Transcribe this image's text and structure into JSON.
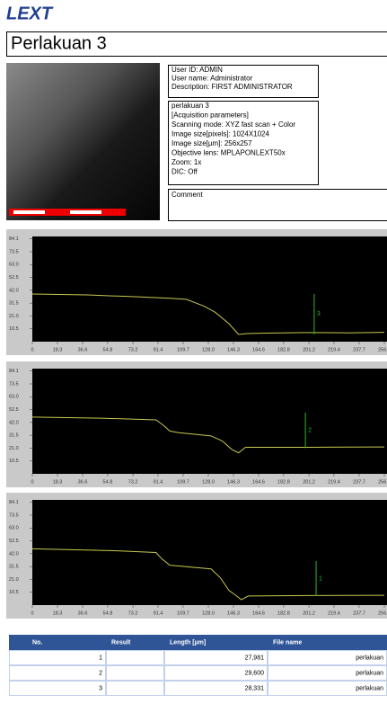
{
  "header": {
    "logo": "LEXT",
    "title": "Perlakuan 3"
  },
  "info": {
    "user": [
      "User ID: ADMIN",
      "User name: Administrator",
      "Description: FIRST ADMINISTRATOR"
    ],
    "params": [
      "perlakuan 3",
      "[Acquisition parameters]",
      "Scanning mode: XYZ fast scan + Color",
      "Image size[pixels]: 1024X1024",
      "Image size[µm]: 256x257",
      "Objective lens: MPLAPONLEXT50x",
      "Zoom: 1x",
      "DIC: Off"
    ],
    "comment": "Comment"
  },
  "profiles": [
    {
      "type": "line",
      "xlim": [
        0,
        256
      ],
      "ylim": [
        0,
        86
      ],
      "yticks": [
        84.1,
        73.5,
        {
          "value": 63.0,
          "label": "63.0"
        },
        52.5,
        {
          "value": 42.0,
          "label": "42.0"
        },
        31.5,
        {
          "value": 21.0,
          "label": "21.0"
        },
        10.5
      ],
      "xticks": [
        0,
        18.3,
        36.6,
        54.8,
        73.2,
        91.4,
        109.7,
        {
          "value": 128.0,
          "label": "128.0"
        },
        146.3,
        164.6,
        182.8,
        201.2,
        219.4,
        237.7,
        {
          "value": 256.0,
          "label": "256.0"
        }
      ],
      "x": [
        0,
        40,
        73,
        100,
        112,
        125,
        133,
        143,
        150,
        156,
        170,
        200,
        230,
        256
      ],
      "y": [
        39,
        38.2,
        36.8,
        35.5,
        34.6,
        29,
        24,
        14.7,
        5.9,
        6.6,
        7.0,
        7.4,
        7.2,
        7.6
      ],
      "color": "#c8c850",
      "marker": {
        "x": 205,
        "ymin": 6,
        "ymax": 39,
        "label": "3",
        "color": "#2db82d"
      }
    },
    {
      "type": "line",
      "xlim": [
        0,
        256
      ],
      "ylim": [
        0,
        86
      ],
      "yticks": [
        84.1,
        73.5,
        {
          "value": 63.0,
          "label": "63.0"
        },
        52.5,
        {
          "value": 42.0,
          "label": "42.0"
        },
        31.5,
        {
          "value": 21.0,
          "label": "21.0"
        },
        10.5
      ],
      "xticks": [
        0,
        18.3,
        36.6,
        54.8,
        73.2,
        91.4,
        109.7,
        {
          "value": 128.0,
          "label": "128.0"
        },
        146.3,
        164.6,
        182.8,
        201.2,
        219.4,
        237.7,
        {
          "value": 256.0,
          "label": "256.0"
        }
      ],
      "x": [
        0,
        50,
        90,
        95,
        100,
        106,
        130,
        138,
        145,
        150,
        155,
        200,
        256
      ],
      "y": [
        46.4,
        45.5,
        44.1,
        40,
        35,
        33.7,
        31,
        27,
        20,
        17.2,
        21.7,
        21.7,
        22
      ],
      "color": "#c8c850",
      "marker": {
        "x": 198.6,
        "ymin": 21,
        "ymax": 50,
        "label": "2",
        "color": "#2db82d"
      }
    },
    {
      "type": "line",
      "xlim": [
        0,
        256
      ],
      "ylim": [
        0,
        86
      ],
      "yticks": [
        84.1,
        73.5,
        {
          "value": 63.0,
          "label": "63.0"
        },
        52.5,
        {
          "value": 42.0,
          "label": "42.0"
        },
        31.5,
        {
          "value": 21.0,
          "label": "21.0"
        },
        10.5
      ],
      "xticks": [
        0,
        18.3,
        36.6,
        54.8,
        73.2,
        91.4,
        109.7,
        {
          "value": 128.0,
          "label": "128.0"
        },
        146.3,
        164.6,
        182.8,
        201.2,
        219.4,
        237.7,
        {
          "value": 256.0,
          "label": "256.0"
        }
      ],
      "x": [
        0,
        60,
        90,
        94,
        100,
        130,
        137,
        143,
        148,
        152,
        157,
        200,
        256
      ],
      "y": [
        46,
        44.5,
        43,
        38,
        32.6,
        29.6,
        22,
        12,
        8,
        4.4,
        7.4,
        7.8,
        8
      ],
      "color": "#c8c850",
      "marker": {
        "x": 206.4,
        "ymin": 7.4,
        "ymax": 36,
        "label": "1",
        "color": "#2db82d"
      }
    }
  ],
  "table": {
    "header": [
      "No.",
      "Result",
      "Length [µm]",
      "File name"
    ],
    "rows": [
      [
        "1",
        "",
        "27,981",
        "perlakuan"
      ],
      [
        "2",
        "",
        "29,600",
        "perlakuan"
      ],
      [
        "3",
        "",
        "28,331",
        "perlakuan"
      ]
    ]
  }
}
